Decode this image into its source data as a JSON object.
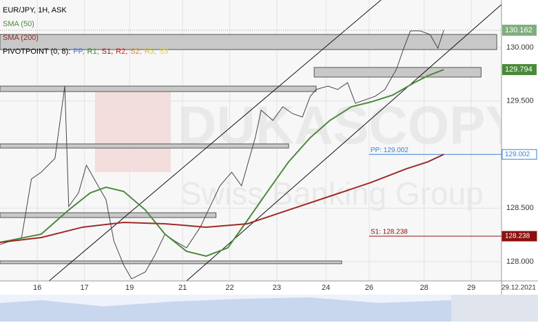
{
  "chart_data": {
    "type": "line",
    "title": "EUR/JPY, 1H, ASK",
    "watermark": [
      "DUKASCOPY",
      "Swiss Banking Group"
    ],
    "xlim": [
      0,
      255.4
    ],
    "xticks": [
      {
        "value": 19,
        "label": "16"
      },
      {
        "value": 43,
        "label": "17"
      },
      {
        "value": 66,
        "label": "19"
      },
      {
        "value": 93,
        "label": "21"
      },
      {
        "value": 117,
        "label": "22"
      },
      {
        "value": 141,
        "label": "23"
      },
      {
        "value": 166,
        "label": "24"
      },
      {
        "value": 188,
        "label": "26"
      },
      {
        "value": 216,
        "label": "28"
      },
      {
        "value": 240,
        "label": "29"
      }
    ],
    "x_date_label": "29.12.2021",
    "ylim": [
      127.82,
      130.444
    ],
    "yticks": [
      {
        "value": 130,
        "label": "130.000"
      },
      {
        "value": 129.5,
        "label": "129.500"
      },
      {
        "value": 128.5,
        "label": "128.500"
      },
      {
        "value": 128,
        "label": "128.000"
      }
    ],
    "grid": true,
    "series": [
      {
        "name": "EUR/JPY",
        "color": "#444444",
        "last_label": "130.162",
        "label_color": "#7fae7f",
        "x": [
          0,
          11,
          16,
          21,
          28,
          33,
          35,
          40,
          44,
          49,
          54,
          58,
          63,
          67,
          74,
          79,
          84,
          89,
          95,
          102,
          107,
          112,
          118,
          123,
          126,
          130,
          133,
          139,
          144,
          149,
          154,
          158,
          161,
          167,
          172,
          177,
          181,
          186,
          191,
          196,
          202,
          205,
          209,
          214,
          219,
          223,
          226
        ],
        "values": [
          128.161,
          128.225,
          128.772,
          128.836,
          128.965,
          129.64,
          128.515,
          128.643,
          128.901,
          128.74,
          128.579,
          128.193,
          127.968,
          127.84,
          127.904,
          128.065,
          128.257,
          128.193,
          128.129,
          128.322,
          128.515,
          128.708,
          128.836,
          128.708,
          128.901,
          129.158,
          129.415,
          129.319,
          129.447,
          129.383,
          129.351,
          129.544,
          129.608,
          129.64,
          129.608,
          129.672,
          129.479,
          129.512,
          129.544,
          129.608,
          129.801,
          129.962,
          130.155,
          130.155,
          130.122,
          129.994,
          130.162
        ]
      },
      {
        "name": "SMA (50)",
        "color": "#4a8a3a",
        "last_label": "129.794",
        "label_color": "#4a8a3a",
        "x": [
          0,
          21,
          35,
          46,
          54,
          63,
          74,
          84,
          95,
          105,
          116,
          126,
          137,
          147,
          158,
          168,
          179,
          189,
          200,
          211,
          218,
          226
        ],
        "values": [
          128.18,
          128.257,
          128.483,
          128.643,
          128.695,
          128.656,
          128.483,
          128.257,
          128.097,
          128.052,
          128.129,
          128.386,
          128.675,
          128.933,
          129.158,
          129.319,
          129.447,
          129.492,
          129.556,
          129.672,
          129.737,
          129.794
        ]
      },
      {
        "name": "SMA (200)",
        "color": "#a02828",
        "x": [
          0,
          21,
          42,
          63,
          84,
          105,
          126,
          147,
          168,
          189,
          207,
          218,
          226
        ],
        "values": [
          128.18,
          128.225,
          128.322,
          128.367,
          128.354,
          128.322,
          128.354,
          128.483,
          128.611,
          128.74,
          128.868,
          128.933,
          129.002
        ]
      }
    ],
    "pivot_legend": [
      {
        "text": "PIVOTPOINT (0, 8):",
        "color": "#000000"
      },
      {
        "text": "PP,",
        "color": "#3a7fd5"
      },
      {
        "text": "R1,",
        "color": "#2e8b2e"
      },
      {
        "text": "S1,",
        "color": "#a01010"
      },
      {
        "text": "R2,",
        "color": "#d02020"
      },
      {
        "text": "S2,",
        "color": "#e08020"
      },
      {
        "text": "R3,",
        "color": "#e0c020"
      },
      {
        "text": "S3",
        "color": "#e8e020"
      }
    ],
    "pivots": [
      {
        "label": "PP: 129.002",
        "axis_label": "129.002",
        "value": 129.002,
        "start": 188,
        "color": "#3a7fd5"
      },
      {
        "label": "S1: 128.238",
        "axis_label": "128.238",
        "value": 128.238,
        "start": 188,
        "color": "#8b1010"
      }
    ],
    "zones": [
      {
        "x": [
          0,
          253
        ],
        "y": [
          129.981,
          130.122
        ]
      },
      {
        "x": [
          160,
          245
        ],
        "y": [
          129.724,
          129.814
        ]
      },
      {
        "x": [
          0,
          161
        ],
        "y": [
          129.589,
          129.64
        ]
      },
      {
        "x": [
          0,
          147
        ],
        "y": [
          129.061,
          129.1
        ]
      },
      {
        "x": [
          0,
          110
        ],
        "y": [
          128.412,
          128.457
        ]
      },
      {
        "x": [
          0,
          174
        ],
        "y": [
          127.981,
          128.007
        ]
      }
    ],
    "trendlines": [
      {
        "x": [
          25,
          194
        ],
        "y": [
          127.82,
          130.444
        ]
      },
      {
        "x": [
          95,
          256
        ],
        "y": [
          127.82,
          130.412
        ]
      }
    ]
  }
}
